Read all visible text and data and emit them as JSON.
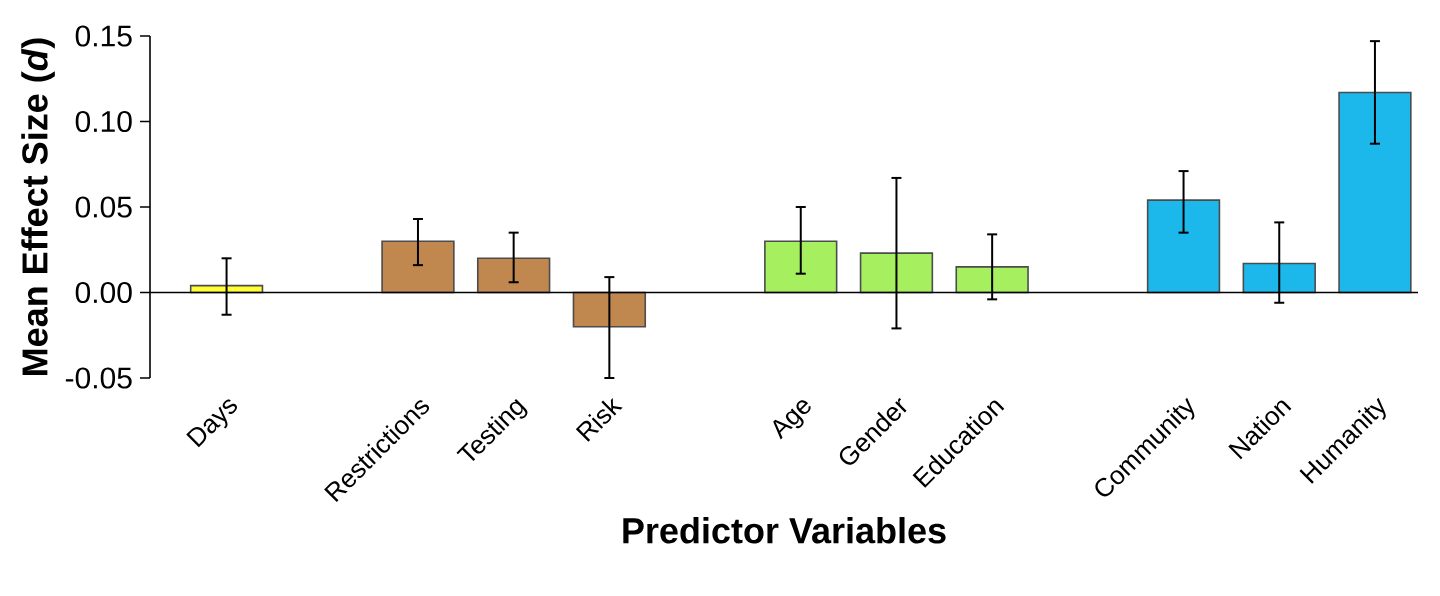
{
  "chart_data": {
    "type": "bar",
    "xlabel": "Predictor Variables",
    "ylabel": "Mean Effect Size (*d*)",
    "categories": [
      "Days",
      null,
      "Restrictions",
      "Testing",
      "Risk",
      null,
      "Age",
      "Gender",
      "Education",
      null,
      "Community",
      "Nation",
      "Humanity"
    ],
    "values": [
      0.004,
      null,
      0.03,
      0.02,
      -0.02,
      null,
      0.03,
      0.023,
      0.015,
      null,
      0.054,
      0.017,
      0.117
    ],
    "errors": [
      [
        -0.013,
        0.02
      ],
      null,
      [
        0.016,
        0.043
      ],
      [
        0.006,
        0.035
      ],
      [
        -0.05,
        0.009
      ],
      null,
      [
        0.011,
        0.05
      ],
      [
        -0.021,
        0.067
      ],
      [
        -0.004,
        0.034
      ],
      null,
      [
        0.035,
        0.071
      ],
      [
        -0.006,
        0.041
      ],
      [
        0.087,
        0.147
      ]
    ],
    "colors": [
      "#ffff33",
      null,
      "#c0874f",
      "#c0874f",
      "#c0874f",
      null,
      "#a6f060",
      "#a6f060",
      "#a6f060",
      null,
      "#1cb8ec",
      "#1cb8ec",
      "#1cb8ec"
    ],
    "ylim": [
      -0.05,
      0.15
    ],
    "yticks": [
      -0.05,
      {
        "value": 0,
        "label": "0.00"
      },
      0.05,
      {
        "value": 0.1,
        "label": "0.10"
      },
      0.15
    ]
  }
}
